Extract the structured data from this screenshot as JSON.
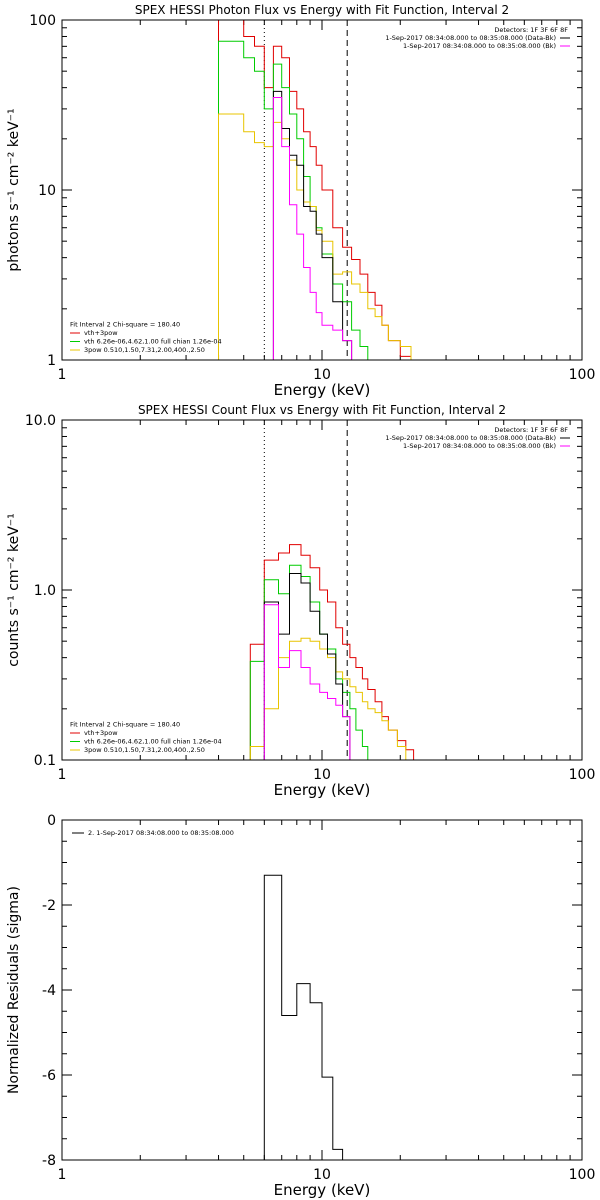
{
  "chart_data": [
    {
      "type": "line",
      "title": "SPEX HESSI Photon Flux vs Energy with Fit Function, Interval 2",
      "xlabel": "Energy (keV)",
      "ylabel": "photons s⁻¹ cm⁻² keV⁻¹",
      "xlim": [
        1,
        100
      ],
      "ylim": [
        1,
        100
      ],
      "x_scale": "log",
      "y_scale": "log",
      "xticks": [
        {
          "v": 1,
          "label": "1"
        },
        {
          "v": 10,
          "label": "10"
        },
        {
          "v": 100,
          "label": "100"
        }
      ],
      "yticks": [
        {
          "v": 1,
          "label": "1"
        },
        {
          "v": 10,
          "label": "10"
        },
        {
          "v": 100,
          "label": "100"
        }
      ],
      "vlines": [
        {
          "x": 6.0,
          "style": "dotted"
        },
        {
          "x": 12.5,
          "style": "dashed"
        }
      ],
      "legend_tr": [
        {
          "text": "Detectors: 1F 3F 6F 8F",
          "color": null
        },
        {
          "text": "1-Sep-2017 08:34:08.000 to 08:35:08.000 (Data-Bk)",
          "color": "#000000"
        },
        {
          "text": "1-Sep-2017 08:34:08.000 to 08:35:08.000 (Bk)",
          "color": "#ff00ff"
        }
      ],
      "legend_bl": [
        {
          "text": "Fit Interval 2   Chi-square = 180.40",
          "color": null
        },
        {
          "text": "vth+3pow",
          "color": "#e00000"
        },
        {
          "text": "vth 6.26e-06,4.62,1.00  full chian 1.26e-04",
          "color": "#00cc00"
        },
        {
          "text": "3pow 0.510,1.50,7.31,2.00,400.,2.50",
          "color": "#e8c400"
        }
      ],
      "edges": [
        4.0,
        4.5,
        5.0,
        5.5,
        6.0,
        6.5,
        7.0,
        7.5,
        8.0,
        8.5,
        9.0,
        9.5,
        10.0,
        11.0,
        12.0,
        13.0,
        14.0,
        15.0,
        16.0,
        17.0,
        18.0,
        20.0,
        22.0,
        24.0
      ],
      "series": [
        {
          "color": "#e00000",
          "values": [
            100,
            100,
            80,
            70,
            40,
            70,
            60,
            38,
            30,
            22,
            18,
            14,
            10,
            6,
            4.6,
            3.9,
            3.2,
            2.5,
            2.1,
            1.6,
            1.3,
            1.05,
            1
          ]
        },
        {
          "color": "#00cc00",
          "values": [
            75,
            75,
            60,
            50,
            30,
            55,
            40,
            28,
            20,
            12,
            8,
            6,
            4.2,
            2.8,
            2.2,
            1.5,
            1.2,
            1,
            1,
            1,
            1,
            1,
            1
          ]
        },
        {
          "color": "#e8c400",
          "values": [
            28,
            28,
            22,
            19,
            18,
            25,
            20,
            15,
            10,
            8.5,
            8,
            5.8,
            5,
            3.2,
            3.3,
            2.8,
            2.5,
            2,
            1.8,
            1.6,
            1.3,
            1.2,
            1
          ]
        },
        {
          "color": "#000000",
          "values": [
            null,
            null,
            null,
            null,
            null,
            38,
            23,
            16,
            14,
            8,
            7.5,
            5.5,
            4,
            2.2,
            1.3,
            null,
            null,
            null,
            null,
            null,
            null,
            null,
            null
          ]
        },
        {
          "color": "#ff00ff",
          "values": [
            null,
            null,
            null,
            null,
            null,
            35,
            18,
            8.2,
            5.5,
            3.5,
            2.5,
            1.9,
            1.6,
            1.5,
            1.3,
            null,
            null,
            null,
            null,
            null,
            null,
            null,
            null
          ]
        }
      ]
    },
    {
      "type": "line",
      "title": "SPEX HESSI Count Flux vs Energy with Fit Function, Interval 2",
      "xlabel": "Energy (keV)",
      "ylabel": "counts s⁻¹ cm⁻² keV⁻¹",
      "xlim": [
        1,
        100
      ],
      "ylim": [
        0.1,
        10
      ],
      "x_scale": "log",
      "y_scale": "log",
      "xticks": [
        {
          "v": 1,
          "label": "1"
        },
        {
          "v": 10,
          "label": "10"
        },
        {
          "v": 100,
          "label": "100"
        }
      ],
      "yticks": [
        {
          "v": 0.1,
          "label": "0.1"
        },
        {
          "v": 1,
          "label": "1.0"
        },
        {
          "v": 10,
          "label": "10.0"
        }
      ],
      "vlines": [
        {
          "x": 6.0,
          "style": "dotted"
        },
        {
          "x": 12.5,
          "style": "dashed"
        }
      ],
      "legend_tr": [
        {
          "text": "Detectors: 1F 3F 6F 8F",
          "color": null
        },
        {
          "text": "1-Sep-2017 08:34:08.000 to 08:35:08.000 (Data-Bk)",
          "color": "#000000"
        },
        {
          "text": "1-Sep-2017 08:34:08.000 to 08:35:08.000 (Bk)",
          "color": "#ff00ff"
        }
      ],
      "legend_bl": [
        {
          "text": "Fit Interval 2   Chi-square = 180.40",
          "color": null
        },
        {
          "text": "vth+3pow",
          "color": "#e00000"
        },
        {
          "text": "vth 6.26e-06,4.62,1.00  full chian 1.26e-04",
          "color": "#00cc00"
        },
        {
          "text": "3pow 0.510,1.50,7.31,2.00,400.,2.50",
          "color": "#e8c400"
        }
      ],
      "edges": [
        5.3,
        6.0,
        6.8,
        7.5,
        8.3,
        9.0,
        9.8,
        10.5,
        11.3,
        12.0,
        12.8,
        13.5,
        14.3,
        15.0,
        16.0,
        17.0,
        18.0,
        19.5,
        21.0,
        22.5,
        24.0
      ],
      "series": [
        {
          "color": "#e00000",
          "values": [
            0.48,
            1.5,
            1.65,
            1.85,
            1.6,
            1.35,
            1.0,
            0.85,
            0.6,
            0.48,
            0.4,
            0.35,
            0.3,
            0.26,
            0.22,
            0.18,
            0.15,
            0.13,
            0.115,
            0.1
          ]
        },
        {
          "color": "#00cc00",
          "values": [
            0.38,
            1.15,
            0.95,
            1.4,
            1.2,
            0.85,
            0.55,
            0.45,
            0.3,
            0.25,
            0.2,
            0.15,
            0.12,
            0.1,
            0.1,
            0.1,
            0.1,
            0.1,
            0.1,
            0.1
          ]
        },
        {
          "color": "#e8c400",
          "values": [
            0.12,
            0.2,
            0.4,
            0.5,
            0.52,
            0.5,
            0.45,
            0.4,
            0.33,
            0.3,
            0.27,
            0.25,
            0.22,
            0.2,
            0.19,
            0.17,
            0.15,
            0.12,
            0.1,
            0.1
          ]
        },
        {
          "color": "#000000",
          "values": [
            null,
            0.85,
            0.55,
            1.25,
            1.1,
            0.75,
            0.55,
            0.42,
            0.28,
            0.18,
            null,
            null,
            null,
            null,
            null,
            null,
            null,
            null,
            null,
            null
          ]
        },
        {
          "color": "#ff00ff",
          "values": [
            null,
            0.82,
            0.35,
            0.44,
            0.35,
            0.28,
            0.25,
            0.23,
            0.21,
            0.18,
            null,
            null,
            null,
            null,
            null,
            null,
            null,
            null,
            null,
            null
          ]
        }
      ]
    },
    {
      "type": "line",
      "title": "",
      "xlabel": "Energy (keV)",
      "ylabel": "Normalized Residuals (sigma)",
      "xlim": [
        1,
        100
      ],
      "ylim": [
        -8,
        0
      ],
      "x_scale": "log",
      "y_scale": "linear",
      "xticks": [
        {
          "v": 1,
          "label": "1"
        },
        {
          "v": 10,
          "label": "10"
        },
        {
          "v": 100,
          "label": "100"
        }
      ],
      "yticks": [
        {
          "v": 0,
          "label": "0"
        },
        {
          "v": -2,
          "label": "-2"
        },
        {
          "v": -4,
          "label": "-4"
        },
        {
          "v": -6,
          "label": "-6"
        },
        {
          "v": -8,
          "label": "-8"
        }
      ],
      "vlines": [],
      "legend_tl": [
        {
          "text": "2. 1-Sep-2017 08:34:08.000 to 08:35:08.000",
          "color": "#000000"
        }
      ],
      "edges": [
        6.0,
        7.0,
        8.0,
        9.0,
        10.0,
        11.0,
        12.0
      ],
      "series": [
        {
          "color": "#000000",
          "values": [
            -1.3,
            -4.6,
            -3.85,
            -4.3,
            -6.05,
            -7.75
          ]
        }
      ]
    }
  ]
}
